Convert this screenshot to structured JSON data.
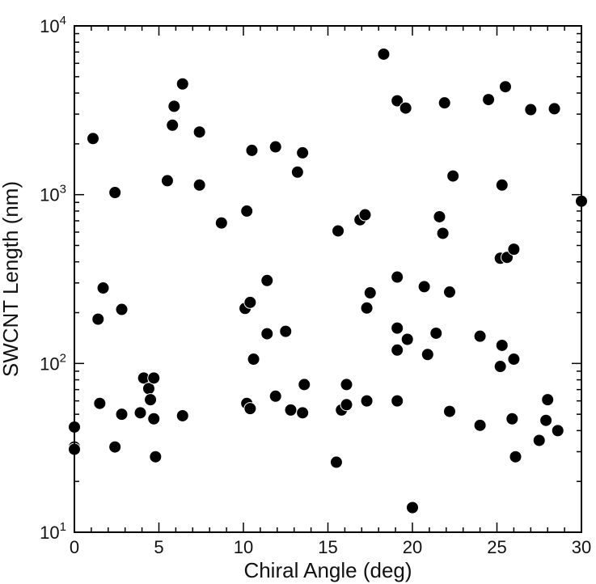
{
  "chart_data": {
    "type": "scatter",
    "xlabel": "Chiral Angle (deg)",
    "ylabel": "SWCNT Length (nm)",
    "xlim": [
      0,
      30
    ],
    "ylim": [
      10,
      10000
    ],
    "yscale": "log",
    "grid": false,
    "x_ticks": [
      0,
      5,
      10,
      15,
      20,
      25,
      30
    ],
    "x_tick_labels": [
      "0",
      "5",
      "10",
      "15",
      "20",
      "25",
      "30"
    ],
    "y_ticks": [
      10,
      100,
      1000,
      10000
    ],
    "y_tick_labels": [
      {
        "base": "10",
        "exp": "1"
      },
      {
        "base": "10",
        "exp": "2"
      },
      {
        "base": "10",
        "exp": "3"
      },
      {
        "base": "10",
        "exp": "4"
      }
    ],
    "marker_color": "#000000",
    "points": [
      {
        "x": 0.0,
        "y": 42
      },
      {
        "x": 0.0,
        "y": 32
      },
      {
        "x": 0.0,
        "y": 31
      },
      {
        "x": 1.1,
        "y": 2150
      },
      {
        "x": 1.4,
        "y": 183
      },
      {
        "x": 1.5,
        "y": 58
      },
      {
        "x": 1.7,
        "y": 280
      },
      {
        "x": 2.4,
        "y": 1030
      },
      {
        "x": 2.4,
        "y": 32
      },
      {
        "x": 2.8,
        "y": 209
      },
      {
        "x": 2.8,
        "y": 50
      },
      {
        "x": 3.9,
        "y": 51
      },
      {
        "x": 4.1,
        "y": 82
      },
      {
        "x": 4.4,
        "y": 71
      },
      {
        "x": 4.5,
        "y": 61
      },
      {
        "x": 4.7,
        "y": 82
      },
      {
        "x": 4.7,
        "y": 47
      },
      {
        "x": 4.8,
        "y": 28
      },
      {
        "x": 5.5,
        "y": 1210
      },
      {
        "x": 5.8,
        "y": 2580
      },
      {
        "x": 5.9,
        "y": 3340
      },
      {
        "x": 6.4,
        "y": 4530
      },
      {
        "x": 6.4,
        "y": 49
      },
      {
        "x": 7.4,
        "y": 2350
      },
      {
        "x": 7.4,
        "y": 1140
      },
      {
        "x": 8.7,
        "y": 680
      },
      {
        "x": 10.1,
        "y": 212
      },
      {
        "x": 10.2,
        "y": 800
      },
      {
        "x": 10.2,
        "y": 58
      },
      {
        "x": 10.4,
        "y": 230
      },
      {
        "x": 10.4,
        "y": 54
      },
      {
        "x": 10.5,
        "y": 1830
      },
      {
        "x": 10.6,
        "y": 106
      },
      {
        "x": 11.4,
        "y": 310
      },
      {
        "x": 11.4,
        "y": 150
      },
      {
        "x": 11.9,
        "y": 1920
      },
      {
        "x": 11.9,
        "y": 64
      },
      {
        "x": 12.5,
        "y": 155
      },
      {
        "x": 12.8,
        "y": 53
      },
      {
        "x": 13.2,
        "y": 1360
      },
      {
        "x": 13.5,
        "y": 1770
      },
      {
        "x": 13.5,
        "y": 51
      },
      {
        "x": 13.6,
        "y": 75
      },
      {
        "x": 15.5,
        "y": 26
      },
      {
        "x": 15.6,
        "y": 610
      },
      {
        "x": 15.8,
        "y": 53
      },
      {
        "x": 16.1,
        "y": 75
      },
      {
        "x": 16.1,
        "y": 57
      },
      {
        "x": 16.9,
        "y": 710
      },
      {
        "x": 17.2,
        "y": 760
      },
      {
        "x": 17.3,
        "y": 213
      },
      {
        "x": 17.3,
        "y": 60
      },
      {
        "x": 17.5,
        "y": 262
      },
      {
        "x": 18.3,
        "y": 6800
      },
      {
        "x": 19.1,
        "y": 3600
      },
      {
        "x": 19.1,
        "y": 325
      },
      {
        "x": 19.1,
        "y": 162
      },
      {
        "x": 19.1,
        "y": 120
      },
      {
        "x": 19.1,
        "y": 60
      },
      {
        "x": 19.6,
        "y": 3260
      },
      {
        "x": 19.7,
        "y": 139
      },
      {
        "x": 20.0,
        "y": 14
      },
      {
        "x": 20.7,
        "y": 285
      },
      {
        "x": 20.9,
        "y": 113
      },
      {
        "x": 21.4,
        "y": 151
      },
      {
        "x": 21.6,
        "y": 740
      },
      {
        "x": 21.8,
        "y": 590
      },
      {
        "x": 21.9,
        "y": 3500
      },
      {
        "x": 22.2,
        "y": 265
      },
      {
        "x": 22.2,
        "y": 52
      },
      {
        "x": 22.4,
        "y": 1290
      },
      {
        "x": 24.0,
        "y": 145
      },
      {
        "x": 24.0,
        "y": 43
      },
      {
        "x": 24.5,
        "y": 3660
      },
      {
        "x": 25.2,
        "y": 420
      },
      {
        "x": 25.2,
        "y": 96
      },
      {
        "x": 25.3,
        "y": 1140
      },
      {
        "x": 25.3,
        "y": 128
      },
      {
        "x": 25.5,
        "y": 4360
      },
      {
        "x": 25.6,
        "y": 425
      },
      {
        "x": 25.9,
        "y": 47
      },
      {
        "x": 26.0,
        "y": 475
      },
      {
        "x": 26.0,
        "y": 106
      },
      {
        "x": 26.1,
        "y": 28
      },
      {
        "x": 27.0,
        "y": 3190
      },
      {
        "x": 27.5,
        "y": 35
      },
      {
        "x": 27.9,
        "y": 46
      },
      {
        "x": 28.0,
        "y": 61
      },
      {
        "x": 28.4,
        "y": 3230
      },
      {
        "x": 28.6,
        "y": 40
      },
      {
        "x": 30.0,
        "y": 915
      }
    ]
  }
}
